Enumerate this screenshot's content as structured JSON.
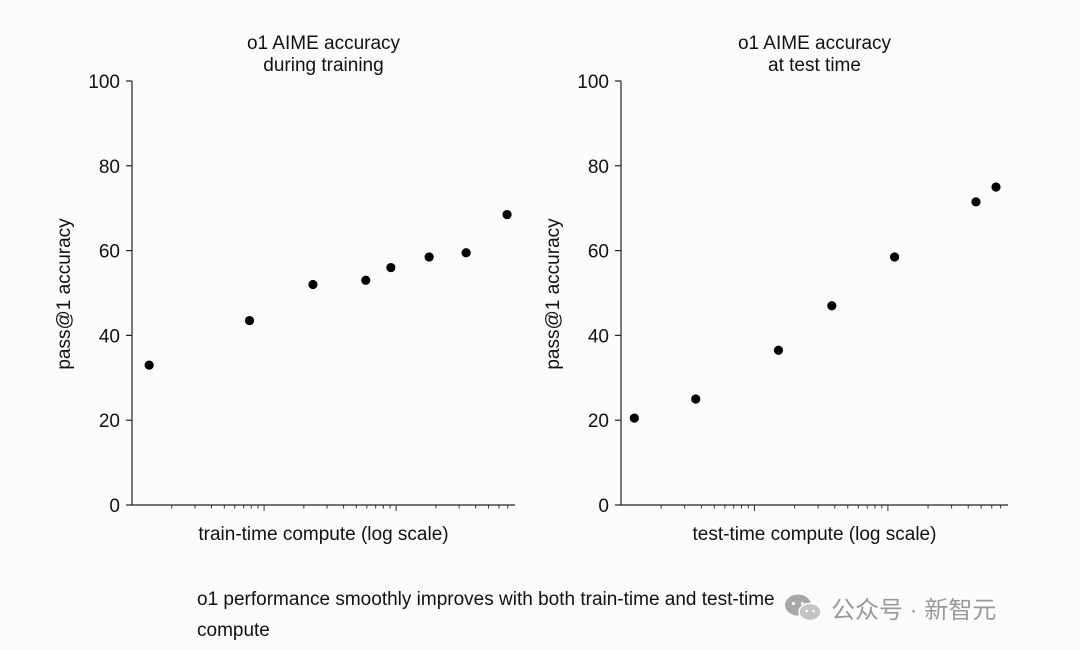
{
  "chart_data": [
    {
      "type": "scatter",
      "title_lines": [
        "o1 AIME accuracy",
        "during training"
      ],
      "xlabel": "train-time compute (log scale)",
      "ylabel": "pass@1 accuracy",
      "ylim": [
        0,
        100
      ],
      "yticks": [
        "0",
        "20",
        "40",
        "60",
        "80",
        "100"
      ],
      "x_scale": "log",
      "xlim_log10": [
        0,
        2.9
      ],
      "x_log10": [
        0.13,
        0.89,
        1.37,
        1.77,
        1.96,
        2.25,
        2.53,
        2.84
      ],
      "y": [
        33,
        43.5,
        52,
        53,
        56,
        58.5,
        59.5,
        68.5
      ],
      "grid": false
    },
    {
      "type": "scatter",
      "title_lines": [
        "o1 AIME accuracy",
        "at test time"
      ],
      "xlabel": "test-time compute (log scale)",
      "ylabel": "pass@1 accuracy",
      "ylim": [
        0,
        100
      ],
      "yticks": [
        "0",
        "20",
        "40",
        "60",
        "80",
        "100"
      ],
      "x_scale": "log",
      "xlim_log10": [
        0,
        2.9
      ],
      "x_log10": [
        0.1,
        0.56,
        1.18,
        1.58,
        2.05,
        2.66,
        2.81
      ],
      "y": [
        20.5,
        25,
        36.5,
        47,
        58.5,
        71.5,
        75
      ],
      "grid": false
    }
  ],
  "caption": "o1 performance smoothly improves with both train-time and test-time compute",
  "watermark": {
    "text": "公众号 · 新智元",
    "icon": "wechat-icon"
  }
}
